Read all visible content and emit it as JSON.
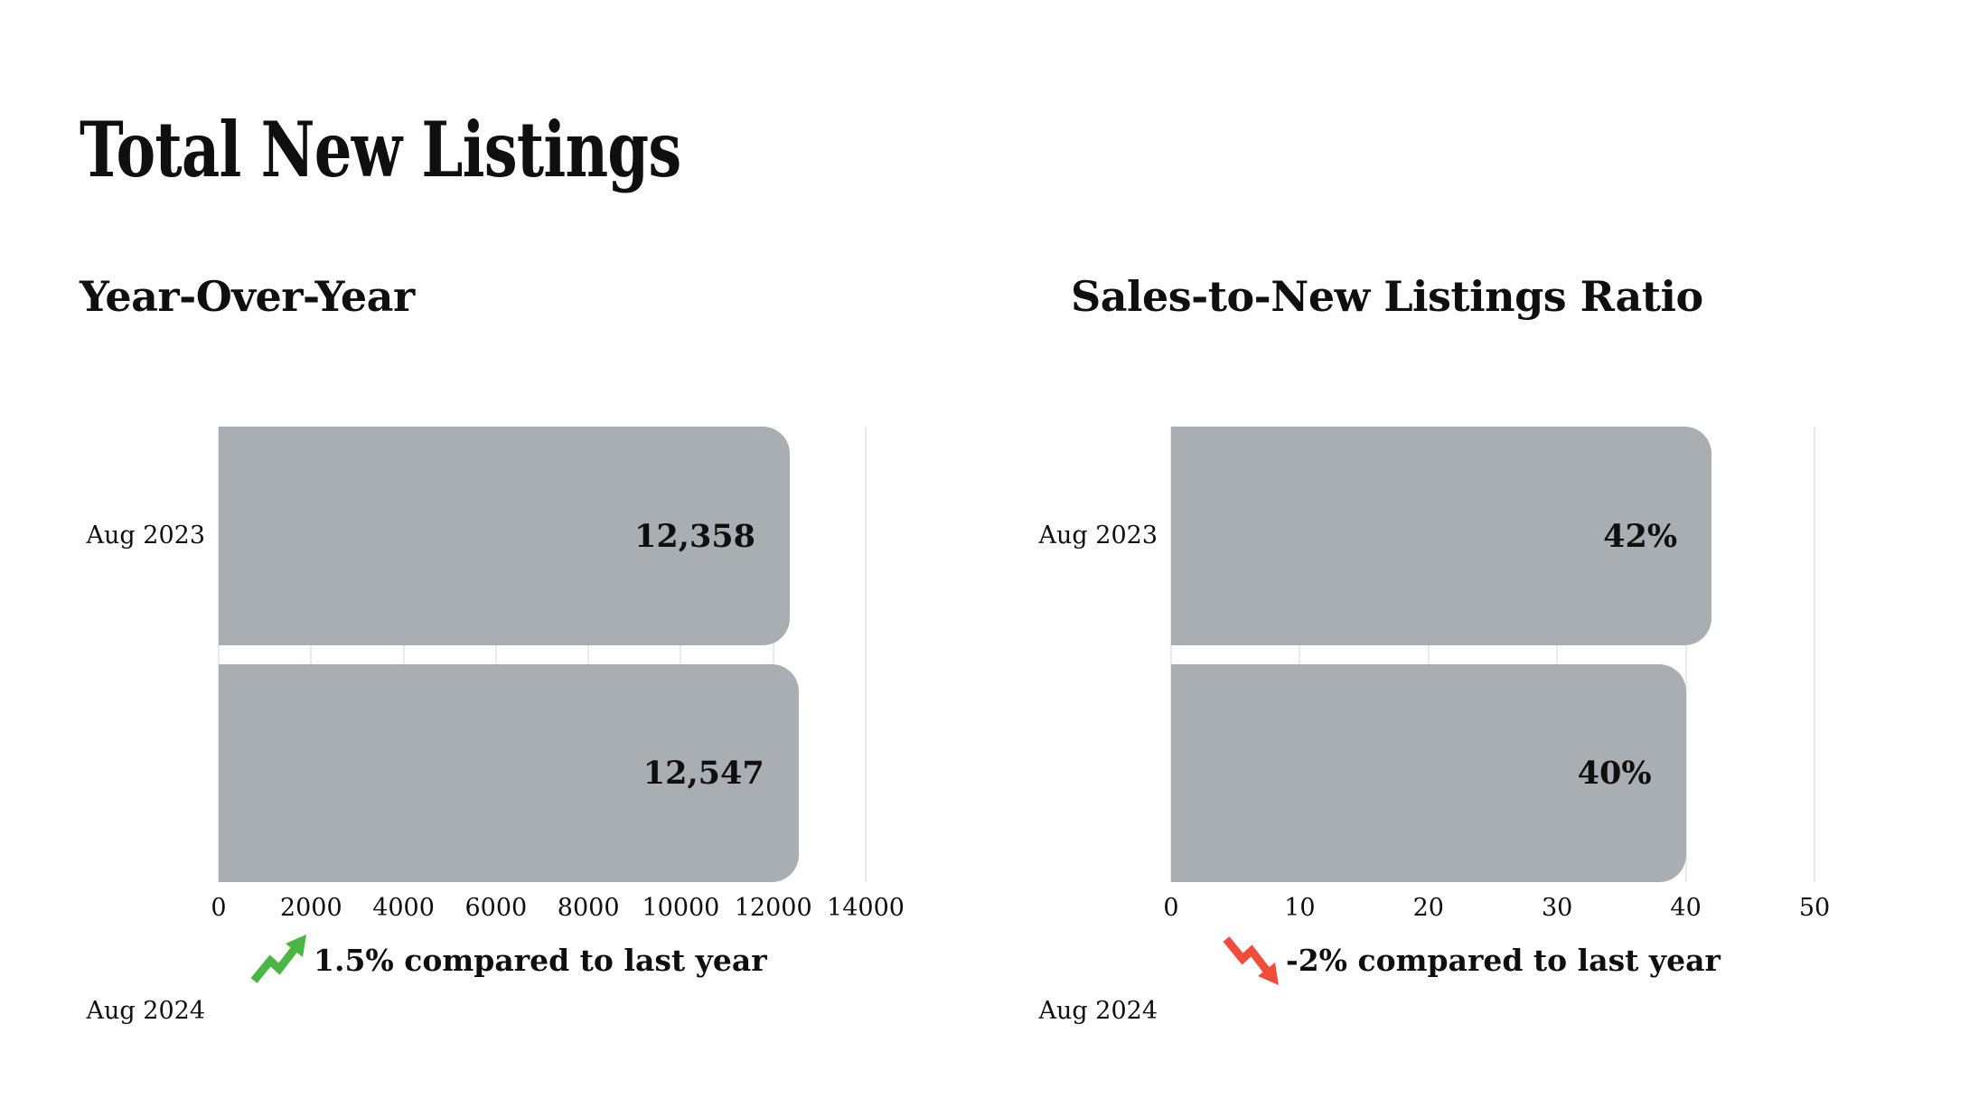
{
  "page": {
    "title": "Total New Listings"
  },
  "colors": {
    "bar": "#a9aeb2",
    "grid": "#e9ebec",
    "text": "#0f0f0f",
    "up": "#4ab643",
    "down": "#f04d3c"
  },
  "chart_data": [
    {
      "type": "bar",
      "orientation": "horizontal",
      "title": "Year-Over-Year",
      "categories": [
        "Aug 2023",
        "Aug 2024"
      ],
      "values": [
        12358,
        12547
      ],
      "value_labels": [
        "12,358",
        "12,547"
      ],
      "xlim": [
        0,
        14000
      ],
      "ticks": [
        0,
        2000,
        4000,
        6000,
        8000,
        10000,
        12000,
        14000
      ],
      "grid": true,
      "legend": "none",
      "annotation": {
        "direction": "up",
        "text": "1.5% compared to last year"
      }
    },
    {
      "type": "bar",
      "orientation": "horizontal",
      "title": "Sales-to-New Listings Ratio",
      "categories": [
        "Aug 2023",
        "Aug 2024"
      ],
      "values": [
        42,
        40
      ],
      "value_labels": [
        "42%",
        "40%"
      ],
      "xlim": [
        0,
        50
      ],
      "ticks": [
        0,
        10,
        20,
        30,
        40,
        50
      ],
      "grid": true,
      "legend": "none",
      "annotation": {
        "direction": "down",
        "text": "-2% compared to last year"
      }
    }
  ]
}
